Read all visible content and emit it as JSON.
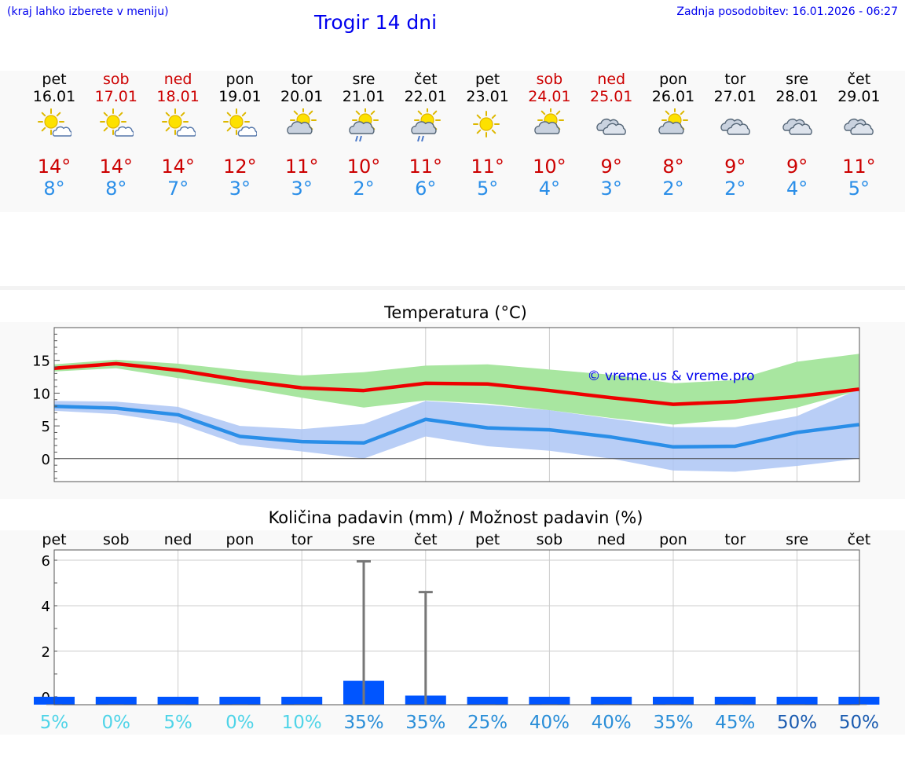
{
  "header": {
    "hint": "(kraj lahko izberete v meniju)",
    "title": "Trogir 14 dni",
    "updated": "Zadnja posodobitev: 16.01.2026 - 06:27"
  },
  "colors": {
    "weekday": "#000000",
    "weekend": "#cc0000",
    "temp_max": "#cc0000",
    "temp_min": "#2a8ee8",
    "max_line": "#ee0000",
    "min_line": "#2a8ee8",
    "max_band": "#a8e6a0",
    "min_band": "#adc6f4",
    "bar": "#0055ff",
    "whisker": "#777777",
    "copyright": "#0000ee"
  },
  "days": [
    {
      "name": "pet",
      "date": "16.01",
      "weekend": false,
      "icon": "sun-cloud-icon",
      "max": "14°",
      "min": "8°"
    },
    {
      "name": "sob",
      "date": "17.01",
      "weekend": true,
      "icon": "sun-cloud-icon",
      "max": "14°",
      "min": "8°"
    },
    {
      "name": "ned",
      "date": "18.01",
      "weekend": true,
      "icon": "sun-cloud-icon",
      "max": "14°",
      "min": "7°"
    },
    {
      "name": "pon",
      "date": "19.01",
      "weekend": false,
      "icon": "sun-cloud-icon",
      "max": "12°",
      "min": "3°"
    },
    {
      "name": "tor",
      "date": "20.01",
      "weekend": false,
      "icon": "cloud-sun-icon",
      "max": "11°",
      "min": "3°"
    },
    {
      "name": "sre",
      "date": "21.01",
      "weekend": false,
      "icon": "cloud-sun-rain-icon",
      "max": "10°",
      "min": "2°"
    },
    {
      "name": "čet",
      "date": "22.01",
      "weekend": false,
      "icon": "cloud-sun-rain-icon",
      "max": "11°",
      "min": "6°"
    },
    {
      "name": "pet",
      "date": "23.01",
      "weekend": false,
      "icon": "sun-icon",
      "max": "11°",
      "min": "5°"
    },
    {
      "name": "sob",
      "date": "24.01",
      "weekend": true,
      "icon": "cloud-sun-icon",
      "max": "10°",
      "min": "4°"
    },
    {
      "name": "ned",
      "date": "25.01",
      "weekend": true,
      "icon": "cloudy-icon",
      "max": "9°",
      "min": "3°"
    },
    {
      "name": "pon",
      "date": "26.01",
      "weekend": false,
      "icon": "cloud-sun-icon",
      "max": "8°",
      "min": "2°"
    },
    {
      "name": "tor",
      "date": "27.01",
      "weekend": false,
      "icon": "cloudy-icon",
      "max": "9°",
      "min": "2°"
    },
    {
      "name": "sre",
      "date": "28.01",
      "weekend": false,
      "icon": "cloudy-icon",
      "max": "9°",
      "min": "4°"
    },
    {
      "name": "čet",
      "date": "29.01",
      "weekend": false,
      "icon": "cloudy-icon",
      "max": "11°",
      "min": "5°"
    }
  ],
  "chart_data": [
    {
      "type": "line",
      "title": "Temperatura (°C)",
      "copyright": "© vreme.us & vreme.pro",
      "ylim": [
        -3.5,
        20
      ],
      "yticks": [
        0,
        5,
        10,
        15
      ],
      "x": [
        0,
        1,
        2,
        3,
        4,
        5,
        6,
        7,
        8,
        9,
        10,
        11,
        12,
        13
      ],
      "series": [
        {
          "name": "max",
          "values": [
            13.8,
            14.5,
            13.5,
            12.0,
            10.8,
            10.4,
            11.5,
            11.4,
            10.4,
            9.3,
            8.3,
            8.7,
            9.5,
            10.6
          ]
        },
        {
          "name": "max_band_upper",
          "values": [
            14.4,
            15.1,
            14.5,
            13.5,
            12.7,
            13.2,
            14.2,
            14.4,
            13.6,
            12.8,
            11.5,
            12.0,
            14.8,
            16.0
          ]
        },
        {
          "name": "max_band_lower",
          "values": [
            13.3,
            13.8,
            12.3,
            10.9,
            9.3,
            7.8,
            8.9,
            8.4,
            7.4,
            6.2,
            5.2,
            6.0,
            7.8,
            10.4
          ]
        },
        {
          "name": "min",
          "values": [
            8.0,
            7.7,
            6.7,
            3.4,
            2.6,
            2.4,
            6.0,
            4.7,
            4.4,
            3.3,
            1.8,
            1.9,
            4.0,
            5.2
          ]
        },
        {
          "name": "min_band_upper",
          "values": [
            8.8,
            8.7,
            7.9,
            5.0,
            4.5,
            5.3,
            8.8,
            8.2,
            7.4,
            6.1,
            4.8,
            4.8,
            6.5,
            10.6
          ]
        },
        {
          "name": "min_band_lower",
          "values": [
            7.3,
            6.8,
            5.4,
            2.1,
            1.1,
            0.0,
            3.4,
            1.9,
            1.2,
            0.0,
            -1.8,
            -2.0,
            -1.1,
            0.0
          ]
        }
      ]
    },
    {
      "type": "bar",
      "title": "Količina padavin (mm) / Možnost padavin (%)",
      "categories": [
        "pet",
        "sob",
        "ned",
        "pon",
        "tor",
        "sre",
        "čet",
        "pet",
        "sob",
        "ned",
        "pon",
        "tor",
        "sre",
        "čet"
      ],
      "ylim": [
        -0.35,
        6.45
      ],
      "yticks": [
        0,
        2,
        4,
        6
      ],
      "values": [
        0,
        0,
        0,
        0,
        0,
        0.7,
        0.05,
        0,
        0,
        0,
        0,
        0,
        0,
        0
      ],
      "max_values": [
        0,
        0,
        0,
        0,
        0,
        5.95,
        4.6,
        0,
        0,
        0,
        0,
        0,
        0,
        0
      ],
      "probability": [
        "5%",
        "0%",
        "5%",
        "0%",
        "10%",
        "35%",
        "35%",
        "25%",
        "40%",
        "40%",
        "35%",
        "45%",
        "50%",
        "50%"
      ],
      "probability_colors": [
        "#4fd4e8",
        "#4fd4e8",
        "#4fd4e8",
        "#4fd4e8",
        "#4fd4e8",
        "#2a8ed8",
        "#2a8ed8",
        "#2a8ed8",
        "#2a8ed8",
        "#2a8ed8",
        "#2a8ed8",
        "#2a8ed8",
        "#1a5bb0",
        "#1a5bb0"
      ]
    }
  ]
}
